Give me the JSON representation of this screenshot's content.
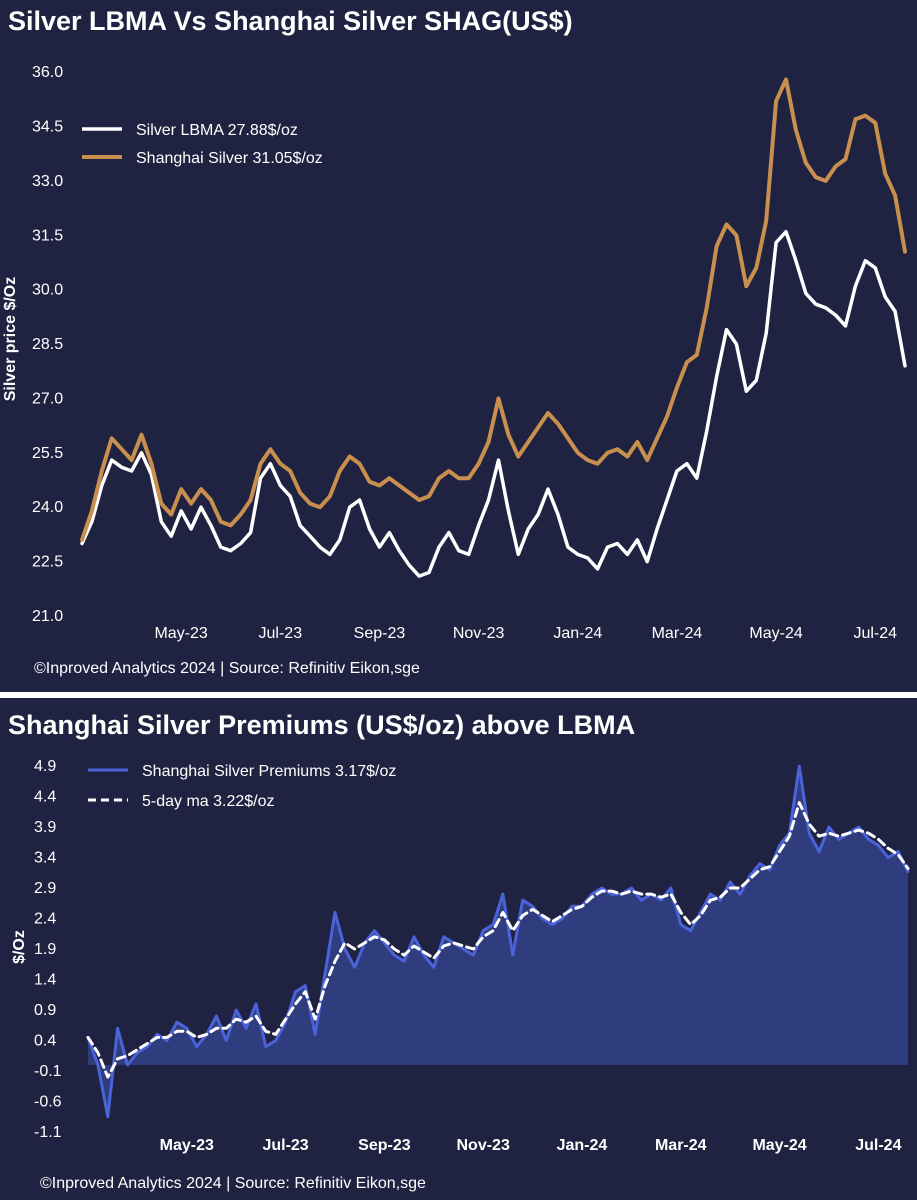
{
  "chart_data": [
    {
      "type": "line",
      "title": "Silver LBMA Vs Shanghai Silver SHAG(US$)",
      "ylabel": "Silver price $/Oz",
      "xlabel": "",
      "ylim": [
        21.0,
        36.5
      ],
      "yticks": [
        "21.0",
        "22.5",
        "24.0",
        "25.5",
        "27.0",
        "28.5",
        "30.0",
        "31.5",
        "33.0",
        "34.5",
        "36.0"
      ],
      "xticks": [
        "May-23",
        "Jul-23",
        "Sep-23",
        "Nov-23",
        "Jan-24",
        "Mar-24",
        "May-24",
        "Jul-24"
      ],
      "xtick_months": [
        2,
        4,
        6,
        8,
        10,
        12,
        14,
        16
      ],
      "x_months": [
        0,
        0.2,
        0.4,
        0.6,
        0.8,
        1.0,
        1.2,
        1.4,
        1.6,
        1.8,
        2.0,
        2.2,
        2.4,
        2.6,
        2.8,
        3.0,
        3.2,
        3.4,
        3.6,
        3.8,
        4.0,
        4.2,
        4.4,
        4.6,
        4.8,
        5.0,
        5.2,
        5.4,
        5.6,
        5.8,
        6.0,
        6.2,
        6.4,
        6.6,
        6.8,
        7.0,
        7.2,
        7.4,
        7.6,
        7.8,
        8.0,
        8.2,
        8.4,
        8.6,
        8.8,
        9.0,
        9.2,
        9.4,
        9.6,
        9.8,
        10.0,
        10.2,
        10.4,
        10.6,
        10.8,
        11.0,
        11.2,
        11.4,
        11.6,
        11.8,
        12.0,
        12.2,
        12.4,
        12.6,
        12.8,
        13.0,
        13.2,
        13.4,
        13.6,
        13.8,
        14.0,
        14.2,
        14.4,
        14.6,
        14.8,
        15.0,
        15.2,
        15.4,
        15.6,
        15.8,
        16.0,
        16.2,
        16.4,
        16.6
      ],
      "legend_position": "top-left",
      "series": [
        {
          "name": "Silver LBMA 27.88$/oz",
          "color": "#ffffff",
          "values": [
            23.0,
            23.6,
            24.6,
            25.3,
            25.1,
            25.0,
            25.5,
            24.9,
            23.6,
            23.2,
            23.9,
            23.4,
            24.0,
            23.5,
            22.9,
            22.8,
            23.0,
            23.3,
            24.8,
            25.2,
            24.6,
            24.3,
            23.5,
            23.2,
            22.9,
            22.7,
            23.1,
            24.0,
            24.2,
            23.4,
            22.9,
            23.3,
            22.8,
            22.4,
            22.1,
            22.2,
            22.9,
            23.3,
            22.8,
            22.7,
            23.5,
            24.2,
            25.3,
            23.9,
            22.7,
            23.4,
            23.8,
            24.5,
            23.8,
            22.9,
            22.7,
            22.6,
            22.3,
            22.9,
            23.0,
            22.7,
            23.1,
            22.5,
            23.4,
            24.2,
            25.0,
            25.2,
            24.8,
            26.1,
            27.6,
            28.9,
            28.5,
            27.2,
            27.5,
            28.8,
            31.3,
            31.6,
            30.8,
            29.9,
            29.6,
            29.5,
            29.3,
            29.0,
            30.1,
            30.8,
            30.6,
            29.8,
            29.4,
            27.9
          ]
        },
        {
          "name": "Shanghai Silver 31.05$/oz",
          "color": "#c98f4e",
          "values": [
            23.1,
            23.9,
            25.0,
            25.9,
            25.6,
            25.3,
            26.0,
            25.2,
            24.1,
            23.8,
            24.5,
            24.1,
            24.5,
            24.2,
            23.6,
            23.5,
            23.8,
            24.2,
            25.2,
            25.6,
            25.2,
            25.0,
            24.4,
            24.1,
            24.0,
            24.3,
            25.0,
            25.4,
            25.2,
            24.7,
            24.6,
            24.8,
            24.6,
            24.4,
            24.2,
            24.3,
            24.8,
            25.0,
            24.8,
            24.8,
            25.2,
            25.8,
            27.0,
            26.0,
            25.4,
            25.8,
            26.2,
            26.6,
            26.3,
            25.9,
            25.5,
            25.3,
            25.2,
            25.5,
            25.6,
            25.4,
            25.8,
            25.3,
            25.9,
            26.5,
            27.3,
            28.0,
            28.2,
            29.5,
            31.2,
            31.8,
            31.5,
            30.1,
            30.6,
            31.9,
            35.2,
            35.8,
            34.4,
            33.5,
            33.1,
            33.0,
            33.4,
            33.6,
            34.7,
            34.8,
            34.6,
            33.2,
            32.6,
            31.05
          ]
        }
      ]
    },
    {
      "type": "area",
      "title": "Shanghai Silver Premiums (US$/oz) above LBMA",
      "ylabel": "$/Oz",
      "xlabel": "",
      "ylim": [
        -1.15,
        5.0
      ],
      "yticks": [
        "-1.1",
        "-0.6",
        "-0.1",
        "0.4",
        "0.9",
        "1.4",
        "1.9",
        "2.4",
        "2.9",
        "3.4",
        "3.9",
        "4.4",
        "4.9"
      ],
      "xticks": [
        "May-23",
        "Jul-23",
        "Sep-23",
        "Nov-23",
        "Jan-24",
        "Mar-24",
        "May-24",
        "Jul-24"
      ],
      "xtick_months": [
        2,
        4,
        6,
        8,
        10,
        12,
        14,
        16
      ],
      "x_months": [
        0,
        0.2,
        0.4,
        0.6,
        0.8,
        1.0,
        1.2,
        1.4,
        1.6,
        1.8,
        2.0,
        2.2,
        2.4,
        2.6,
        2.8,
        3.0,
        3.2,
        3.4,
        3.6,
        3.8,
        4.0,
        4.2,
        4.4,
        4.6,
        4.8,
        5.0,
        5.2,
        5.4,
        5.6,
        5.8,
        6.0,
        6.2,
        6.4,
        6.6,
        6.8,
        7.0,
        7.2,
        7.4,
        7.6,
        7.8,
        8.0,
        8.2,
        8.4,
        8.6,
        8.8,
        9.0,
        9.2,
        9.4,
        9.6,
        9.8,
        10.0,
        10.2,
        10.4,
        10.6,
        10.8,
        11.0,
        11.2,
        11.4,
        11.6,
        11.8,
        12.0,
        12.2,
        12.4,
        12.6,
        12.8,
        13.0,
        13.2,
        13.4,
        13.6,
        13.8,
        14.0,
        14.2,
        14.4,
        14.6,
        14.8,
        15.0,
        15.2,
        15.4,
        15.6,
        15.8,
        16.0,
        16.2,
        16.4,
        16.6
      ],
      "legend_position": "top-left",
      "series": [
        {
          "name": "Shanghai Silver Premiums 3.17$/oz",
          "color": "#4a63d8",
          "values": [
            0.45,
            0.0,
            -0.85,
            0.6,
            0.0,
            0.2,
            0.3,
            0.5,
            0.4,
            0.7,
            0.6,
            0.3,
            0.5,
            0.8,
            0.4,
            0.9,
            0.6,
            1.0,
            0.3,
            0.4,
            0.7,
            1.2,
            1.3,
            0.5,
            1.5,
            2.5,
            1.9,
            1.6,
            2.0,
            2.2,
            2.0,
            1.8,
            1.7,
            2.1,
            1.8,
            1.6,
            2.1,
            2.0,
            1.9,
            1.8,
            2.2,
            2.3,
            2.8,
            1.8,
            2.7,
            2.6,
            2.4,
            2.3,
            2.4,
            2.6,
            2.6,
            2.8,
            2.9,
            2.8,
            2.8,
            2.9,
            2.7,
            2.8,
            2.7,
            2.9,
            2.3,
            2.2,
            2.5,
            2.8,
            2.7,
            3.0,
            2.8,
            3.1,
            3.3,
            3.2,
            3.6,
            3.8,
            4.9,
            3.8,
            3.5,
            3.9,
            3.7,
            3.8,
            3.9,
            3.7,
            3.6,
            3.4,
            3.5,
            3.17
          ]
        },
        {
          "name": "5-day ma 3.22$/oz",
          "color": "#ffffff",
          "values": [
            0.45,
            0.2,
            -0.2,
            0.1,
            0.15,
            0.25,
            0.35,
            0.45,
            0.45,
            0.55,
            0.55,
            0.45,
            0.5,
            0.6,
            0.6,
            0.75,
            0.7,
            0.8,
            0.55,
            0.5,
            0.75,
            1.0,
            1.2,
            0.75,
            1.3,
            1.7,
            2.0,
            1.9,
            2.0,
            2.1,
            2.05,
            1.9,
            1.8,
            1.95,
            1.85,
            1.75,
            1.95,
            2.0,
            1.95,
            1.9,
            2.1,
            2.2,
            2.5,
            2.2,
            2.45,
            2.55,
            2.45,
            2.35,
            2.45,
            2.55,
            2.6,
            2.75,
            2.85,
            2.85,
            2.8,
            2.85,
            2.8,
            2.8,
            2.75,
            2.8,
            2.5,
            2.3,
            2.45,
            2.7,
            2.75,
            2.9,
            2.9,
            3.05,
            3.2,
            3.25,
            3.5,
            3.75,
            4.3,
            3.95,
            3.75,
            3.8,
            3.75,
            3.8,
            3.85,
            3.8,
            3.7,
            3.55,
            3.45,
            3.22
          ]
        }
      ]
    }
  ],
  "footer": {
    "top_source": "©Inproved Analytics 2024 | Source: Refinitiv Eikon,sge",
    "bottom_source": "©Inproved Analytics 2024 | Source: Refinitiv Eikon,sge"
  }
}
